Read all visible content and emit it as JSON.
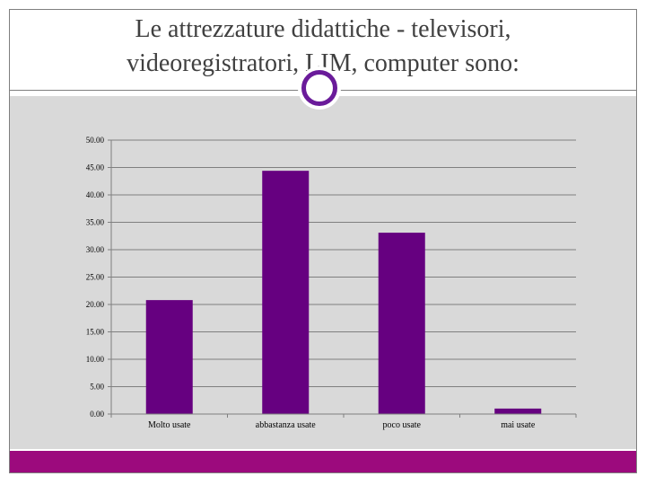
{
  "slide": {
    "title_line1": "Le attrezzature didattiche - televisori,",
    "title_line2": "videoregistratori, LIM, computer sono:"
  },
  "colors": {
    "bar": "#660080",
    "plot_background": "#d9d9d9",
    "footer": "#9c0a7d",
    "circle": "#6a1b9a"
  },
  "chart_data": {
    "type": "bar",
    "title": "",
    "xlabel": "",
    "ylabel": "",
    "categories": [
      "Molto usate",
      "abbastanza usate",
      "poco usate",
      "mai usate"
    ],
    "values": [
      20.8,
      44.4,
      33.1,
      1.0
    ],
    "ylim": [
      0,
      50
    ],
    "yticks": [
      "0.00",
      "5.00",
      "10.00",
      "15.00",
      "20.00",
      "25.00",
      "30.00",
      "35.00",
      "40.00",
      "45.00",
      "50.00"
    ],
    "grid": true,
    "legend": "none"
  }
}
